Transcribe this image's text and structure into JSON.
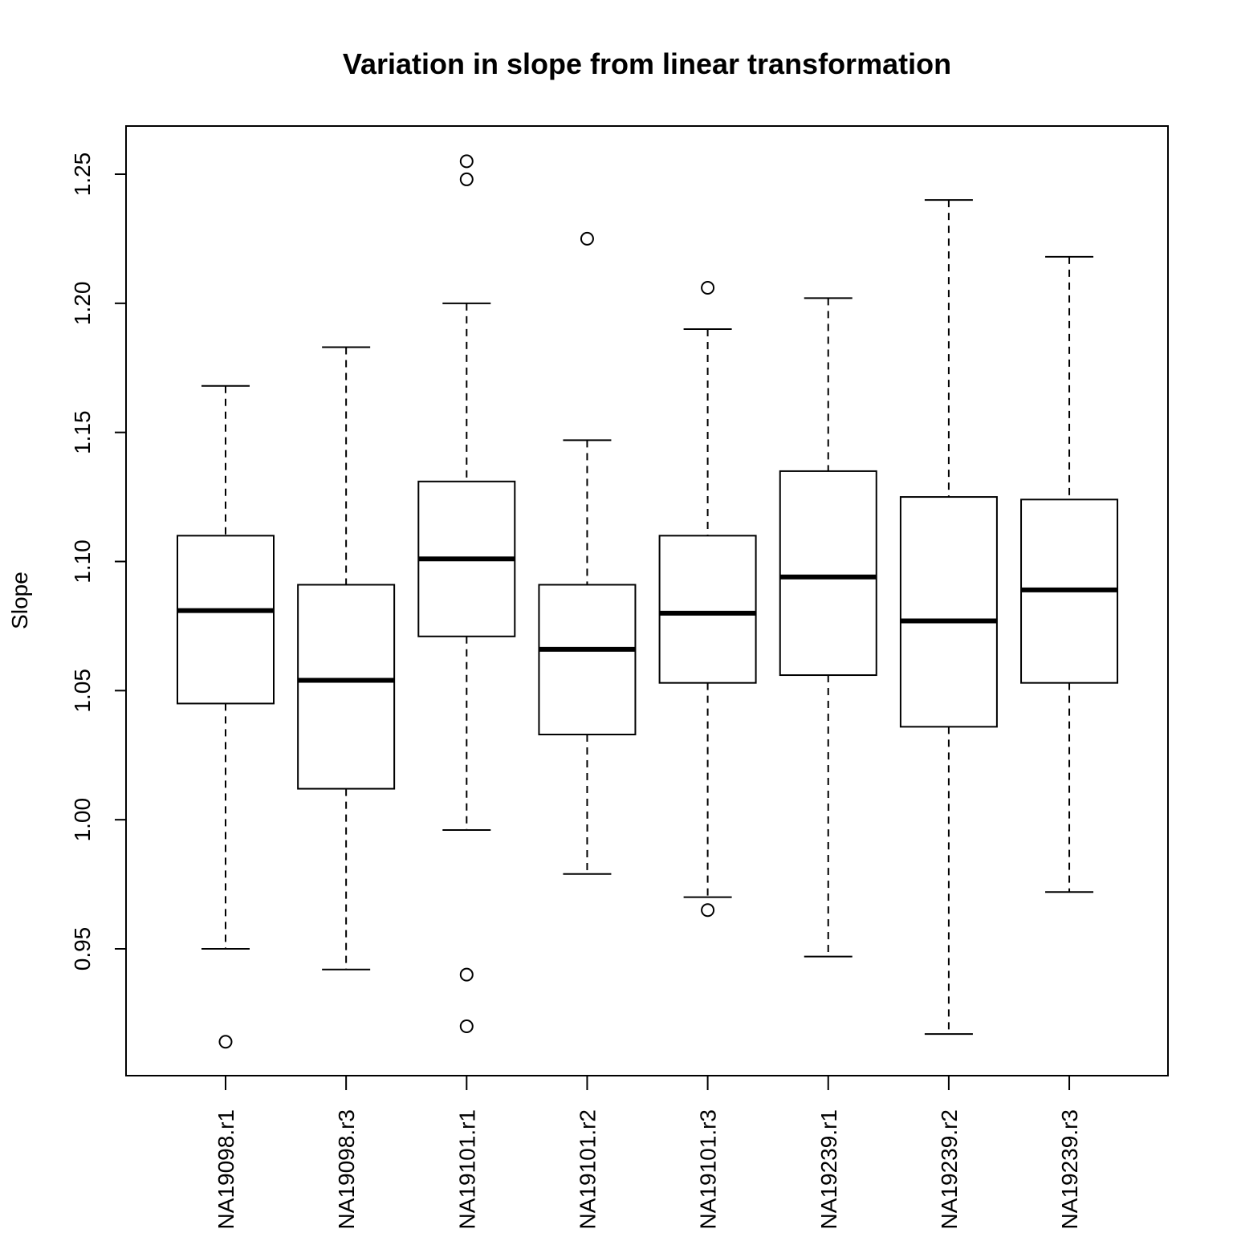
{
  "chart_data": {
    "type": "boxplot",
    "title": "Variation in slope from linear transformation",
    "xlabel": "",
    "ylabel": "Slope",
    "ylim": [
      0.9,
      1.268
    ],
    "yticks": [
      0.95,
      1.0,
      1.05,
      1.1,
      1.15,
      1.2,
      1.25
    ],
    "ytick_labels": [
      "0.95",
      "1.00",
      "1.05",
      "1.10",
      "1.15",
      "1.20",
      "1.25"
    ],
    "grid": false,
    "categories": [
      "NA19098.r1",
      "NA19098.r3",
      "NA19101.r1",
      "NA19101.r2",
      "NA19101.r3",
      "NA19239.r1",
      "NA19239.r2",
      "NA19239.r3"
    ],
    "boxes": [
      {
        "name": "NA19098.r1",
        "whisker_low": 0.95,
        "q1": 1.045,
        "median": 1.081,
        "q3": 1.11,
        "whisker_high": 1.168,
        "outliers": [
          0.914
        ]
      },
      {
        "name": "NA19098.r3",
        "whisker_low": 0.942,
        "q1": 1.012,
        "median": 1.054,
        "q3": 1.091,
        "whisker_high": 1.183,
        "outliers": []
      },
      {
        "name": "NA19101.r1",
        "whisker_low": 0.996,
        "q1": 1.071,
        "median": 1.101,
        "q3": 1.131,
        "whisker_high": 1.2,
        "outliers": [
          1.255,
          1.248,
          0.94,
          0.92
        ]
      },
      {
        "name": "NA19101.r2",
        "whisker_low": 0.979,
        "q1": 1.033,
        "median": 1.066,
        "q3": 1.091,
        "whisker_high": 1.147,
        "outliers": [
          1.225
        ]
      },
      {
        "name": "NA19101.r3",
        "whisker_low": 0.97,
        "q1": 1.053,
        "median": 1.08,
        "q3": 1.11,
        "whisker_high": 1.19,
        "outliers": [
          1.206,
          0.965
        ]
      },
      {
        "name": "NA19239.r1",
        "whisker_low": 0.947,
        "q1": 1.056,
        "median": 1.094,
        "q3": 1.135,
        "whisker_high": 1.202,
        "outliers": []
      },
      {
        "name": "NA19239.r2",
        "whisker_low": 0.917,
        "q1": 1.036,
        "median": 1.077,
        "q3": 1.125,
        "whisker_high": 1.24,
        "outliers": []
      },
      {
        "name": "NA19239.r3",
        "whisker_low": 0.972,
        "q1": 1.053,
        "median": 1.089,
        "q3": 1.124,
        "whisker_high": 1.218,
        "outliers": []
      }
    ]
  }
}
